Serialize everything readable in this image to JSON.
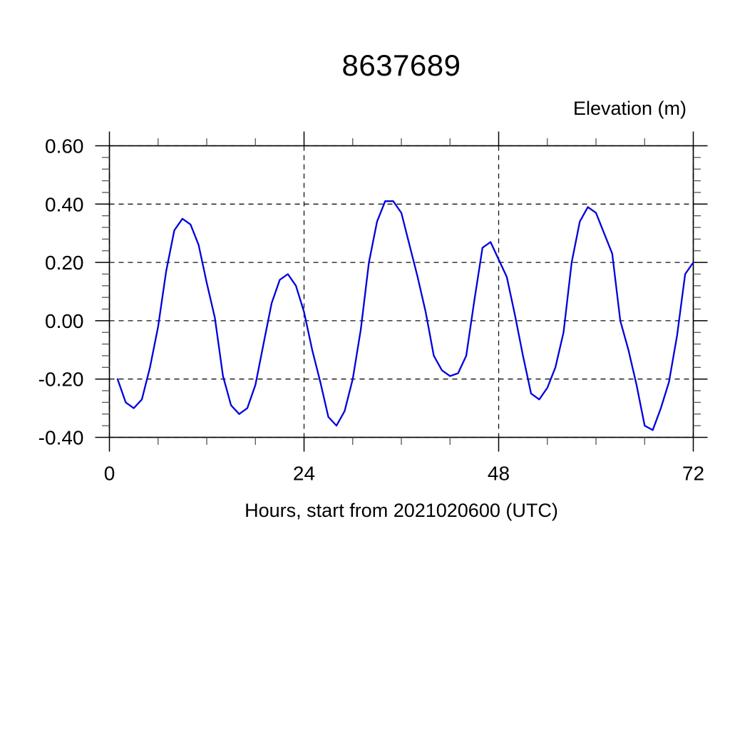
{
  "title": "8637689",
  "chart_data": {
    "type": "line",
    "title": "8637689",
    "ylabel": "Elevation (m)",
    "xlabel": "Hours, start from 2021020600 (UTC)",
    "xlim": [
      0,
      72
    ],
    "ylim": [
      -0.4,
      0.6
    ],
    "x_major_ticks": [
      0,
      24,
      48,
      72
    ],
    "x_tick_labels": [
      "0",
      "24",
      "48",
      "72"
    ],
    "x_minor_step": 6,
    "y_major_ticks": [
      0.6,
      0.4,
      0.2,
      0.0,
      -0.2,
      -0.4
    ],
    "y_tick_labels": [
      "0.60",
      "0.40",
      "0.20",
      "0.00",
      "-0.20",
      "-0.40"
    ],
    "y_minor_step": 0.04,
    "grid": "dashed-at-major-ticks",
    "legend_position": "none",
    "line_color": "#0000dd",
    "frame_color": "#000000",
    "background": "#ffffff",
    "series": [
      {
        "name": "elevation",
        "x": [
          1,
          2,
          3,
          4,
          5,
          6,
          7,
          8,
          9,
          10,
          11,
          12,
          13,
          14,
          15,
          16,
          17,
          18,
          19,
          20,
          21,
          22,
          23,
          24,
          25,
          26,
          27,
          28,
          29,
          30,
          31,
          32,
          33,
          34,
          35,
          36,
          37,
          38,
          39,
          40,
          41,
          42,
          43,
          44,
          45,
          46,
          47,
          48,
          49,
          50,
          51,
          52,
          53,
          54,
          55,
          56,
          57,
          58,
          59,
          60,
          61,
          62,
          63,
          64,
          65,
          66,
          67,
          68,
          69,
          70,
          71,
          72
        ],
        "values": [
          -0.2,
          -0.28,
          -0.3,
          -0.27,
          -0.16,
          -0.02,
          0.17,
          0.31,
          0.35,
          0.33,
          0.26,
          0.13,
          0.01,
          -0.19,
          -0.29,
          -0.32,
          -0.3,
          -0.22,
          -0.08,
          0.06,
          0.14,
          0.16,
          0.12,
          0.03,
          -0.1,
          -0.21,
          -0.33,
          -0.36,
          -0.31,
          -0.2,
          -0.03,
          0.2,
          0.34,
          0.41,
          0.41,
          0.37,
          0.26,
          0.15,
          0.03,
          -0.12,
          -0.17,
          -0.19,
          -0.18,
          -0.12,
          0.07,
          0.25,
          0.27,
          0.21,
          0.15,
          0.02,
          -0.12,
          -0.25,
          -0.27,
          -0.23,
          -0.16,
          -0.04,
          0.2,
          0.34,
          0.39,
          0.37,
          0.3,
          0.23,
          0.0,
          -0.1,
          -0.22,
          -0.36,
          -0.375,
          -0.3,
          -0.21,
          -0.05,
          0.16,
          0.2
        ]
      }
    ]
  }
}
